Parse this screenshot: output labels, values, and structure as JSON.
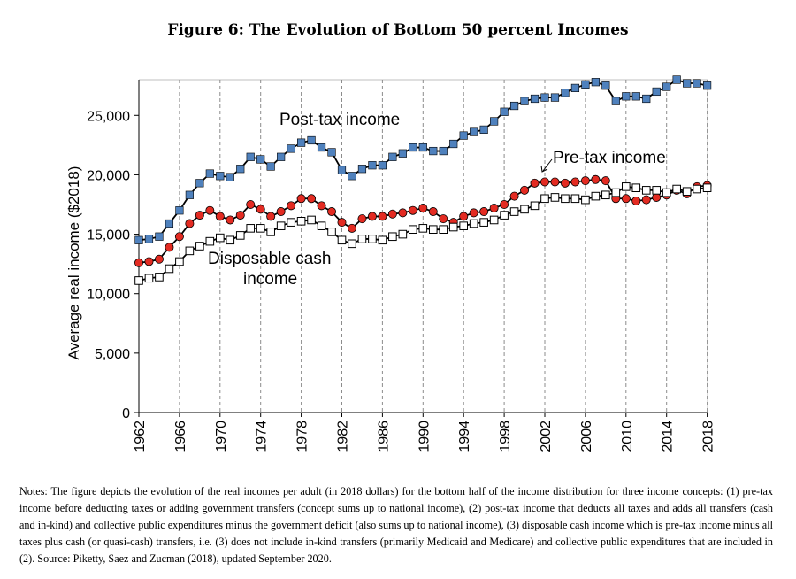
{
  "title": "Figure 6: The Evolution of Bottom 50 percent Incomes",
  "notes": "Notes: The figure depicts the evolution of the real incomes per adult (in 2018 dollars) for the bottom half of the income distribution for three income concepts: (1) pre-tax income before deducting taxes or adding government transfers (concept sums up to national income), (2) post-tax income that deducts all taxes and adds all transfers (cash and in-kind) and collective public expenditures minus the government deficit (also sums up to national income), (3) disposable cash income which is pre-tax income minus all taxes plus cash (or quasi-cash) transfers, i.e. (3) does not include in-kind transfers (primarily Medicaid and Medicare) and collective public expenditures that are included in (2). Source: Piketty, Saez and Zucman (2018), updated September 2020.",
  "chart_data": {
    "type": "line",
    "title": "Figure 6: The Evolution of Bottom 50 percent Incomes",
    "xlabel": "",
    "ylabel": "Average real income ($2018)",
    "xlim": [
      1962,
      2018
    ],
    "ylim": [
      0,
      28000
    ],
    "xticks": [
      1962,
      1966,
      1970,
      1974,
      1978,
      1982,
      1986,
      1990,
      1994,
      1998,
      2002,
      2006,
      2010,
      2014,
      2018
    ],
    "yticks": [
      0,
      5000,
      10000,
      15000,
      20000,
      25000
    ],
    "ytick_labels": [
      "0",
      "5,000",
      "10,000",
      "15,000",
      "20,000",
      "25,000"
    ],
    "grid": "vertical dashed lines at x ticks",
    "x": [
      1962,
      1963,
      1964,
      1965,
      1966,
      1967,
      1968,
      1969,
      1970,
      1971,
      1972,
      1973,
      1974,
      1975,
      1976,
      1977,
      1978,
      1979,
      1980,
      1981,
      1982,
      1983,
      1984,
      1985,
      1986,
      1987,
      1988,
      1989,
      1990,
      1991,
      1992,
      1993,
      1994,
      1995,
      1996,
      1997,
      1998,
      1999,
      2000,
      2001,
      2002,
      2003,
      2004,
      2005,
      2006,
      2007,
      2008,
      2009,
      2010,
      2011,
      2012,
      2013,
      2014,
      2015,
      2016,
      2017,
      2018
    ],
    "series": [
      {
        "name": "Post-tax income",
        "marker": "square",
        "color": "#4f81bd",
        "values": [
          14500,
          14600,
          14800,
          15900,
          17000,
          18300,
          19300,
          20100,
          19900,
          19800,
          20500,
          21500,
          21300,
          20700,
          21500,
          22200,
          22700,
          22900,
          22300,
          21900,
          20400,
          19900,
          20500,
          20800,
          20800,
          21500,
          21800,
          22300,
          22300,
          22000,
          22000,
          22600,
          23300,
          23600,
          23800,
          24500,
          25300,
          25800,
          26200,
          26400,
          26500,
          26500,
          26900,
          27300,
          27600,
          27800,
          27500,
          26200,
          26600,
          26600,
          26400,
          27000,
          27400,
          28000,
          27700,
          27700,
          27500
        ]
      },
      {
        "name": "Pre-tax income",
        "marker": "circle",
        "color": "#e32b22",
        "values": [
          12600,
          12700,
          12900,
          13900,
          14800,
          15900,
          16600,
          17000,
          16500,
          16200,
          16600,
          17500,
          17100,
          16500,
          16900,
          17400,
          18000,
          18000,
          17400,
          16900,
          16000,
          15500,
          16300,
          16500,
          16500,
          16700,
          16800,
          17000,
          17200,
          16900,
          16300,
          16000,
          16500,
          16800,
          16900,
          17200,
          17500,
          18200,
          18700,
          19300,
          19400,
          19400,
          19300,
          19400,
          19500,
          19600,
          19500,
          18000,
          18000,
          17800,
          17900,
          18100,
          18300,
          18700,
          18400,
          19000,
          19100
        ]
      },
      {
        "name": "Disposable cash income",
        "marker": "square-open",
        "color": "#000000",
        "values": [
          11100,
          11300,
          11400,
          12100,
          12700,
          13600,
          14000,
          14400,
          14700,
          14500,
          14900,
          15500,
          15500,
          15200,
          15700,
          16000,
          16100,
          16200,
          15700,
          15200,
          14500,
          14200,
          14600,
          14600,
          14500,
          14800,
          15000,
          15400,
          15500,
          15400,
          15400,
          15600,
          15700,
          15900,
          16000,
          16200,
          16600,
          16900,
          17100,
          17400,
          18000,
          18100,
          18000,
          18000,
          17900,
          18200,
          18300,
          18500,
          19000,
          18900,
          18700,
          18700,
          18500,
          18800,
          18600,
          18800,
          18900
        ]
      }
    ],
    "annotations": [
      {
        "text": "Post-tax income",
        "series": "Post-tax income"
      },
      {
        "text": "Pre-tax income",
        "series": "Pre-tax income",
        "arrow": true
      },
      {
        "text": "Disposable cash income",
        "series": "Disposable cash income"
      }
    ],
    "label_lines": {
      "post": "Post-tax income",
      "pre": "Pre-tax income",
      "disp1": "Disposable cash",
      "disp2": "income"
    }
  }
}
